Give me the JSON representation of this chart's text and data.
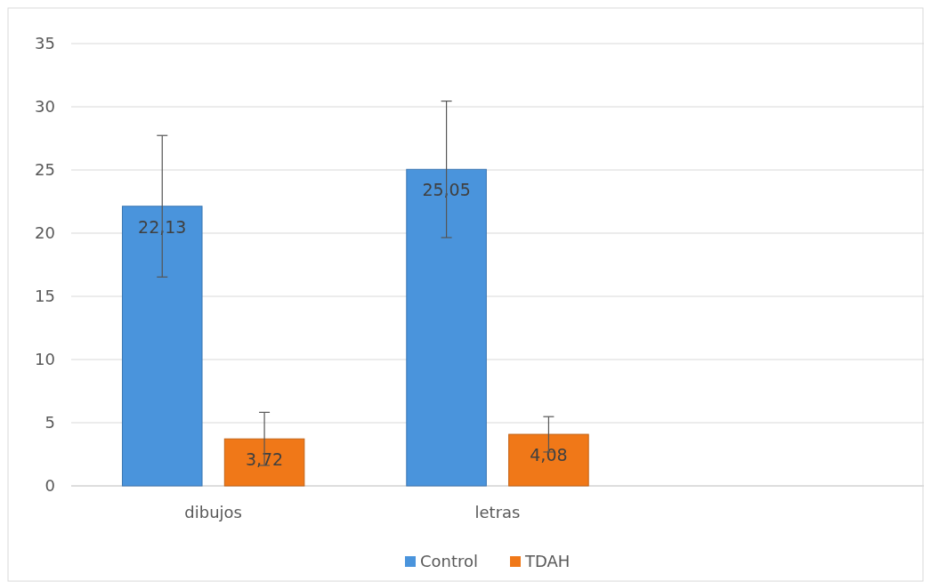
{
  "chart_data": {
    "type": "bar",
    "categories": [
      "dibujos",
      "letras",
      null
    ],
    "series": [
      {
        "name": "Control",
        "color": "#4a94dc",
        "values": [
          22.13,
          25.05,
          null
        ],
        "errors": [
          5.6,
          5.4,
          null
        ],
        "value_labels": [
          "22,13",
          "25,05",
          null
        ]
      },
      {
        "name": "TDAH",
        "color": "#f07818",
        "values": [
          3.72,
          4.08,
          null
        ],
        "errors": [
          2.1,
          1.4,
          null
        ],
        "value_labels": [
          "3,72",
          "4,08",
          null
        ]
      }
    ],
    "ylim": [
      0,
      35
    ],
    "yticks": [
      0,
      5,
      10,
      15,
      20,
      25,
      30,
      35
    ],
    "grid": "y",
    "legend": "bottom"
  }
}
